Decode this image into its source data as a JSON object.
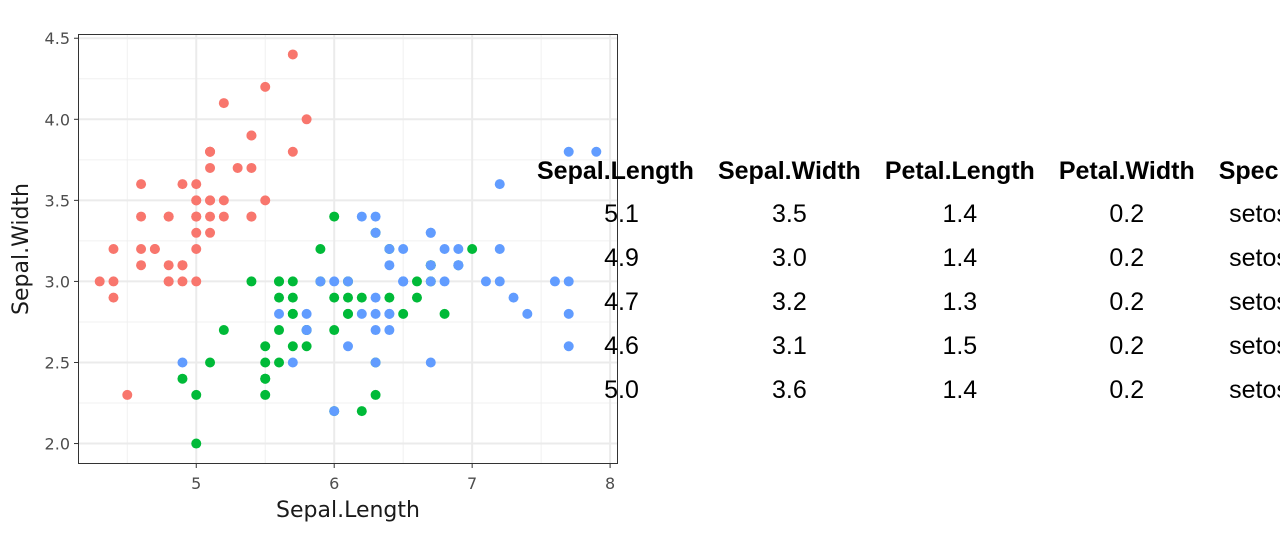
{
  "chart_data": {
    "type": "scatter",
    "xlabel": "Sepal.Length",
    "ylabel": "Sepal.Width",
    "xlim": [
      4.15,
      8.05
    ],
    "ylim": [
      1.88,
      4.52
    ],
    "x_ticks": [
      "5",
      "6",
      "7",
      "8"
    ],
    "y_ticks": [
      "2.0",
      "2.5",
      "3.0",
      "3.5",
      "4.0",
      "4.5"
    ],
    "grid": true,
    "legend": "none",
    "series": [
      {
        "color": "#F8766D",
        "points": [
          [
            5.1,
            3.5
          ],
          [
            4.9,
            3.0
          ],
          [
            4.7,
            3.2
          ],
          [
            4.6,
            3.1
          ],
          [
            5.0,
            3.6
          ],
          [
            5.4,
            3.9
          ],
          [
            4.6,
            3.4
          ],
          [
            5.0,
            3.4
          ],
          [
            4.4,
            2.9
          ],
          [
            4.9,
            3.1
          ],
          [
            5.4,
            3.7
          ],
          [
            4.8,
            3.4
          ],
          [
            4.8,
            3.0
          ],
          [
            4.3,
            3.0
          ],
          [
            5.8,
            4.0
          ],
          [
            5.7,
            4.4
          ],
          [
            5.4,
            3.9
          ],
          [
            5.1,
            3.5
          ],
          [
            5.7,
            3.8
          ],
          [
            5.1,
            3.8
          ],
          [
            5.4,
            3.4
          ],
          [
            5.1,
            3.7
          ],
          [
            4.6,
            3.6
          ],
          [
            5.1,
            3.3
          ],
          [
            4.8,
            3.4
          ],
          [
            5.0,
            3.0
          ],
          [
            5.0,
            3.4
          ],
          [
            5.2,
            3.5
          ],
          [
            5.2,
            3.4
          ],
          [
            4.7,
            3.2
          ],
          [
            4.8,
            3.1
          ],
          [
            5.4,
            3.4
          ],
          [
            5.2,
            4.1
          ],
          [
            5.5,
            4.2
          ],
          [
            4.9,
            3.1
          ],
          [
            5.0,
            3.2
          ],
          [
            5.5,
            3.5
          ],
          [
            4.9,
            3.6
          ],
          [
            4.4,
            3.0
          ],
          [
            5.1,
            3.4
          ],
          [
            5.0,
            3.5
          ],
          [
            4.5,
            2.3
          ],
          [
            4.4,
            3.2
          ],
          [
            5.0,
            3.5
          ],
          [
            5.1,
            3.8
          ],
          [
            4.8,
            3.0
          ],
          [
            5.1,
            3.8
          ],
          [
            4.6,
            3.2
          ],
          [
            5.3,
            3.7
          ],
          [
            5.0,
            3.3
          ]
        ]
      },
      {
        "color": "#00BA38",
        "points": [
          [
            7.0,
            3.2
          ],
          [
            6.4,
            3.2
          ],
          [
            6.9,
            3.1
          ],
          [
            5.5,
            2.3
          ],
          [
            6.5,
            2.8
          ],
          [
            5.7,
            2.8
          ],
          [
            6.3,
            3.3
          ],
          [
            4.9,
            2.4
          ],
          [
            6.6,
            2.9
          ],
          [
            5.2,
            2.7
          ],
          [
            5.0,
            2.0
          ],
          [
            5.9,
            3.0
          ],
          [
            6.0,
            2.2
          ],
          [
            6.1,
            2.9
          ],
          [
            5.6,
            2.9
          ],
          [
            6.7,
            3.1
          ],
          [
            5.6,
            3.0
          ],
          [
            5.8,
            2.7
          ],
          [
            6.2,
            2.2
          ],
          [
            5.6,
            2.5
          ],
          [
            5.9,
            3.2
          ],
          [
            6.1,
            2.8
          ],
          [
            6.3,
            2.5
          ],
          [
            6.1,
            2.8
          ],
          [
            6.4,
            2.9
          ],
          [
            6.6,
            3.0
          ],
          [
            6.8,
            2.8
          ],
          [
            6.7,
            3.0
          ],
          [
            6.0,
            2.9
          ],
          [
            5.7,
            2.6
          ],
          [
            5.5,
            2.4
          ],
          [
            5.5,
            2.4
          ],
          [
            5.8,
            2.7
          ],
          [
            6.0,
            2.7
          ],
          [
            5.4,
            3.0
          ],
          [
            6.0,
            3.4
          ],
          [
            6.7,
            3.1
          ],
          [
            6.3,
            2.3
          ],
          [
            5.6,
            3.0
          ],
          [
            5.5,
            2.5
          ],
          [
            5.5,
            2.6
          ],
          [
            6.1,
            3.0
          ],
          [
            5.8,
            2.6
          ],
          [
            5.0,
            2.3
          ],
          [
            5.6,
            2.7
          ],
          [
            5.7,
            3.0
          ],
          [
            5.7,
            2.9
          ],
          [
            6.2,
            2.9
          ],
          [
            5.1,
            2.5
          ],
          [
            5.7,
            2.8
          ]
        ]
      },
      {
        "color": "#619CFF",
        "points": [
          [
            6.3,
            3.3
          ],
          [
            5.8,
            2.7
          ],
          [
            7.1,
            3.0
          ],
          [
            6.3,
            2.9
          ],
          [
            6.5,
            3.0
          ],
          [
            7.6,
            3.0
          ],
          [
            4.9,
            2.5
          ],
          [
            7.3,
            2.9
          ],
          [
            6.7,
            2.5
          ],
          [
            7.2,
            3.6
          ],
          [
            6.5,
            3.2
          ],
          [
            6.4,
            2.7
          ],
          [
            6.8,
            3.0
          ],
          [
            5.7,
            2.5
          ],
          [
            5.8,
            2.8
          ],
          [
            6.4,
            3.2
          ],
          [
            6.5,
            3.0
          ],
          [
            7.7,
            3.8
          ],
          [
            7.7,
            2.6
          ],
          [
            6.0,
            2.2
          ],
          [
            6.9,
            3.2
          ],
          [
            5.6,
            2.8
          ],
          [
            7.7,
            2.8
          ],
          [
            6.3,
            2.7
          ],
          [
            6.7,
            3.3
          ],
          [
            7.2,
            3.2
          ],
          [
            6.2,
            2.8
          ],
          [
            6.1,
            3.0
          ],
          [
            6.4,
            2.8
          ],
          [
            7.2,
            3.0
          ],
          [
            7.4,
            2.8
          ],
          [
            7.9,
            3.8
          ],
          [
            6.4,
            2.8
          ],
          [
            6.3,
            2.8
          ],
          [
            6.1,
            2.6
          ],
          [
            7.7,
            3.0
          ],
          [
            6.3,
            3.4
          ],
          [
            6.4,
            3.1
          ],
          [
            6.0,
            3.0
          ],
          [
            6.9,
            3.1
          ],
          [
            6.7,
            3.1
          ],
          [
            6.9,
            3.1
          ],
          [
            5.8,
            2.7
          ],
          [
            6.8,
            3.2
          ],
          [
            6.7,
            3.3
          ],
          [
            6.7,
            3.0
          ],
          [
            6.3,
            2.5
          ],
          [
            6.5,
            3.0
          ],
          [
            6.2,
            3.4
          ],
          [
            5.9,
            3.0
          ]
        ]
      }
    ]
  },
  "table": {
    "columns": [
      "Sepal.Length",
      "Sepal.Width",
      "Petal.Length",
      "Petal.Width",
      "Species"
    ],
    "rows": [
      [
        "5.1",
        "3.5",
        "1.4",
        "0.2",
        "setosa"
      ],
      [
        "4.9",
        "3.0",
        "1.4",
        "0.2",
        "setosa"
      ],
      [
        "4.7",
        "3.2",
        "1.3",
        "0.2",
        "setosa"
      ],
      [
        "4.6",
        "3.1",
        "1.5",
        "0.2",
        "setosa"
      ],
      [
        "5.0",
        "3.6",
        "1.4",
        "0.2",
        "setosa"
      ]
    ]
  }
}
